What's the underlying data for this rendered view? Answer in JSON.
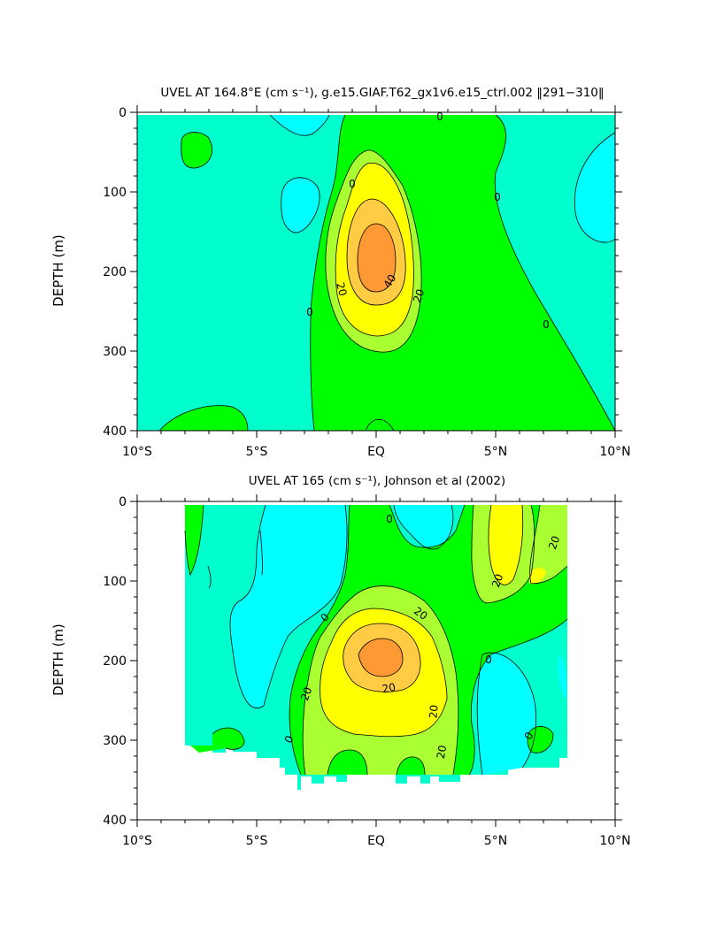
{
  "chart_data": [
    {
      "type": "contour",
      "title": "UVEL AT 164.8°E (cm s⁻¹), g.e15.GIAF.T62_gx1v6.e15_ctrl.002 ‖291−310‖",
      "ylabel": "DEPTH (m)",
      "xlabel": "",
      "x_ticks": [
        "10°S",
        "5°S",
        "EQ",
        "5°N",
        "10°N"
      ],
      "x_range": [
        -10,
        10
      ],
      "y_ticks": [
        "0",
        "100",
        "200",
        "300",
        "400"
      ],
      "y_range": [
        0,
        400
      ],
      "y_inverted": true,
      "contour_interval": 10,
      "contour_labels": [
        "0",
        "0",
        "0",
        "0",
        "0",
        "20",
        "40",
        "20"
      ],
      "max_velocity_estimate": 55,
      "max_location": {
        "lat": 0,
        "depth": 180
      }
    },
    {
      "type": "contour",
      "title": "UVEL AT 165 (cm s⁻¹), Johnson et al (2002)",
      "ylabel": "DEPTH (m)",
      "xlabel": "",
      "x_ticks": [
        "10°S",
        "5°S",
        "EQ",
        "5°N",
        "10°N"
      ],
      "x_range": [
        -10,
        10
      ],
      "y_ticks": [
        "0",
        "100",
        "200",
        "300",
        "400"
      ],
      "y_range": [
        0,
        400
      ],
      "y_inverted": true,
      "contour_interval": 10,
      "contour_labels": [
        "0",
        "20",
        "20",
        "20",
        "20",
        "20",
        "20",
        "0",
        "0",
        "0",
        "0",
        "20"
      ],
      "data_lat_range": [
        -8,
        8
      ],
      "max_velocity_estimate": 45,
      "max_location": {
        "lat": 0,
        "depth": 190
      }
    }
  ],
  "colors": {
    "neg": "#00ffff",
    "band_0_10": "#00ffcc",
    "band_10_20": "#00ff00",
    "band_20_30": "#aaff33",
    "band_30_40": "#ffff00",
    "band_40_50": "#ffcc44",
    "band_50_60": "#ff9933"
  }
}
